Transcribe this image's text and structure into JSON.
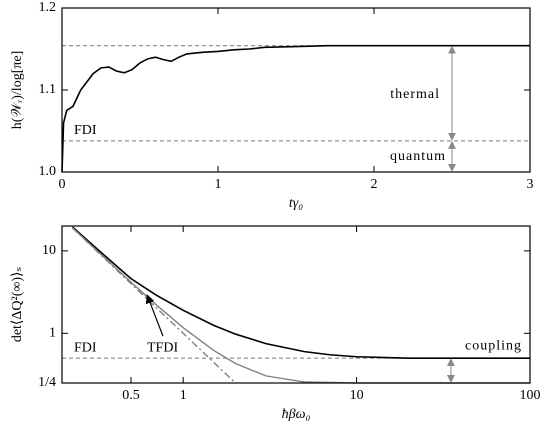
{
  "chart_data": [
    {
      "type": "line",
      "xlabel": "tγ₀",
      "ylabel": "h(𝒲ᵣ)/log[πe]",
      "xlim": [
        0,
        3
      ],
      "ylim": [
        1.0,
        1.2
      ],
      "xticks": [
        0,
        1,
        2,
        3
      ],
      "yticks": [
        {
          "value": 1.0,
          "label": "1.0"
        },
        {
          "value": 1.1,
          "label": "1.1"
        },
        {
          "value": 1.2,
          "label": "1.2"
        }
      ],
      "hlines": [
        1.154,
        1.038
      ],
      "annotations": [
        "thermal",
        "quantum",
        "FDI"
      ],
      "series": [
        {
          "color": "#000000",
          "dash": false,
          "x": [
            0,
            0.01,
            0.03,
            0.07,
            0.12,
            0.2,
            0.25,
            0.3,
            0.35,
            0.4,
            0.45,
            0.5,
            0.55,
            0.6,
            0.65,
            0.7,
            0.75,
            0.8,
            0.9,
            1.0,
            1.1,
            1.2,
            1.3,
            1.5,
            1.7,
            2.0,
            2.5,
            3.0
          ],
          "values": [
            1.0,
            1.06,
            1.075,
            1.08,
            1.1,
            1.12,
            1.127,
            1.128,
            1.123,
            1.121,
            1.125,
            1.133,
            1.138,
            1.14,
            1.137,
            1.135,
            1.14,
            1.144,
            1.146,
            1.147,
            1.149,
            1.15,
            1.152,
            1.153,
            1.154,
            1.154,
            1.154,
            1.154
          ]
        }
      ]
    },
    {
      "type": "line",
      "log_x": true,
      "log_y": true,
      "xlabel": "ħβω₀",
      "ylabel": "det⟨ΔQ²(∞)⟩ₛ",
      "xlim": [
        0.2,
        100
      ],
      "ylim": [
        0.25,
        20
      ],
      "xticks": [
        0.5,
        1,
        10,
        100
      ],
      "yticks": [
        {
          "value": 0.25,
          "label": "1/4"
        },
        1,
        10
      ],
      "hlines": [
        0.5
      ],
      "annotations": [
        "FDI",
        "TFDI",
        "coupling"
      ],
      "series": [
        {
          "color": "#000000",
          "dash": false,
          "x": [
            0.23,
            0.3,
            0.5,
            0.7,
            1,
            1.5,
            2,
            3,
            5,
            7,
            10,
            20,
            50,
            100
          ],
          "values": [
            19.5,
            11.8,
            4.6,
            2.9,
            1.9,
            1.25,
            0.98,
            0.75,
            0.6,
            0.55,
            0.52,
            0.5,
            0.5,
            0.5
          ]
        },
        {
          "color": "#808080",
          "dash": false,
          "x": [
            0.23,
            0.3,
            0.5,
            0.7,
            1,
            1.5,
            2,
            3,
            5,
            10,
            100
          ],
          "values": [
            19.07,
            11.28,
            4.168,
            2.209,
            1.171,
            0.62,
            0.431,
            0.305,
            0.257,
            0.25,
            0.25
          ]
        },
        {
          "color": "#808080",
          "dash": true,
          "x": [
            0.23,
            2
          ],
          "values": [
            18.9,
            0.25
          ]
        }
      ]
    }
  ]
}
